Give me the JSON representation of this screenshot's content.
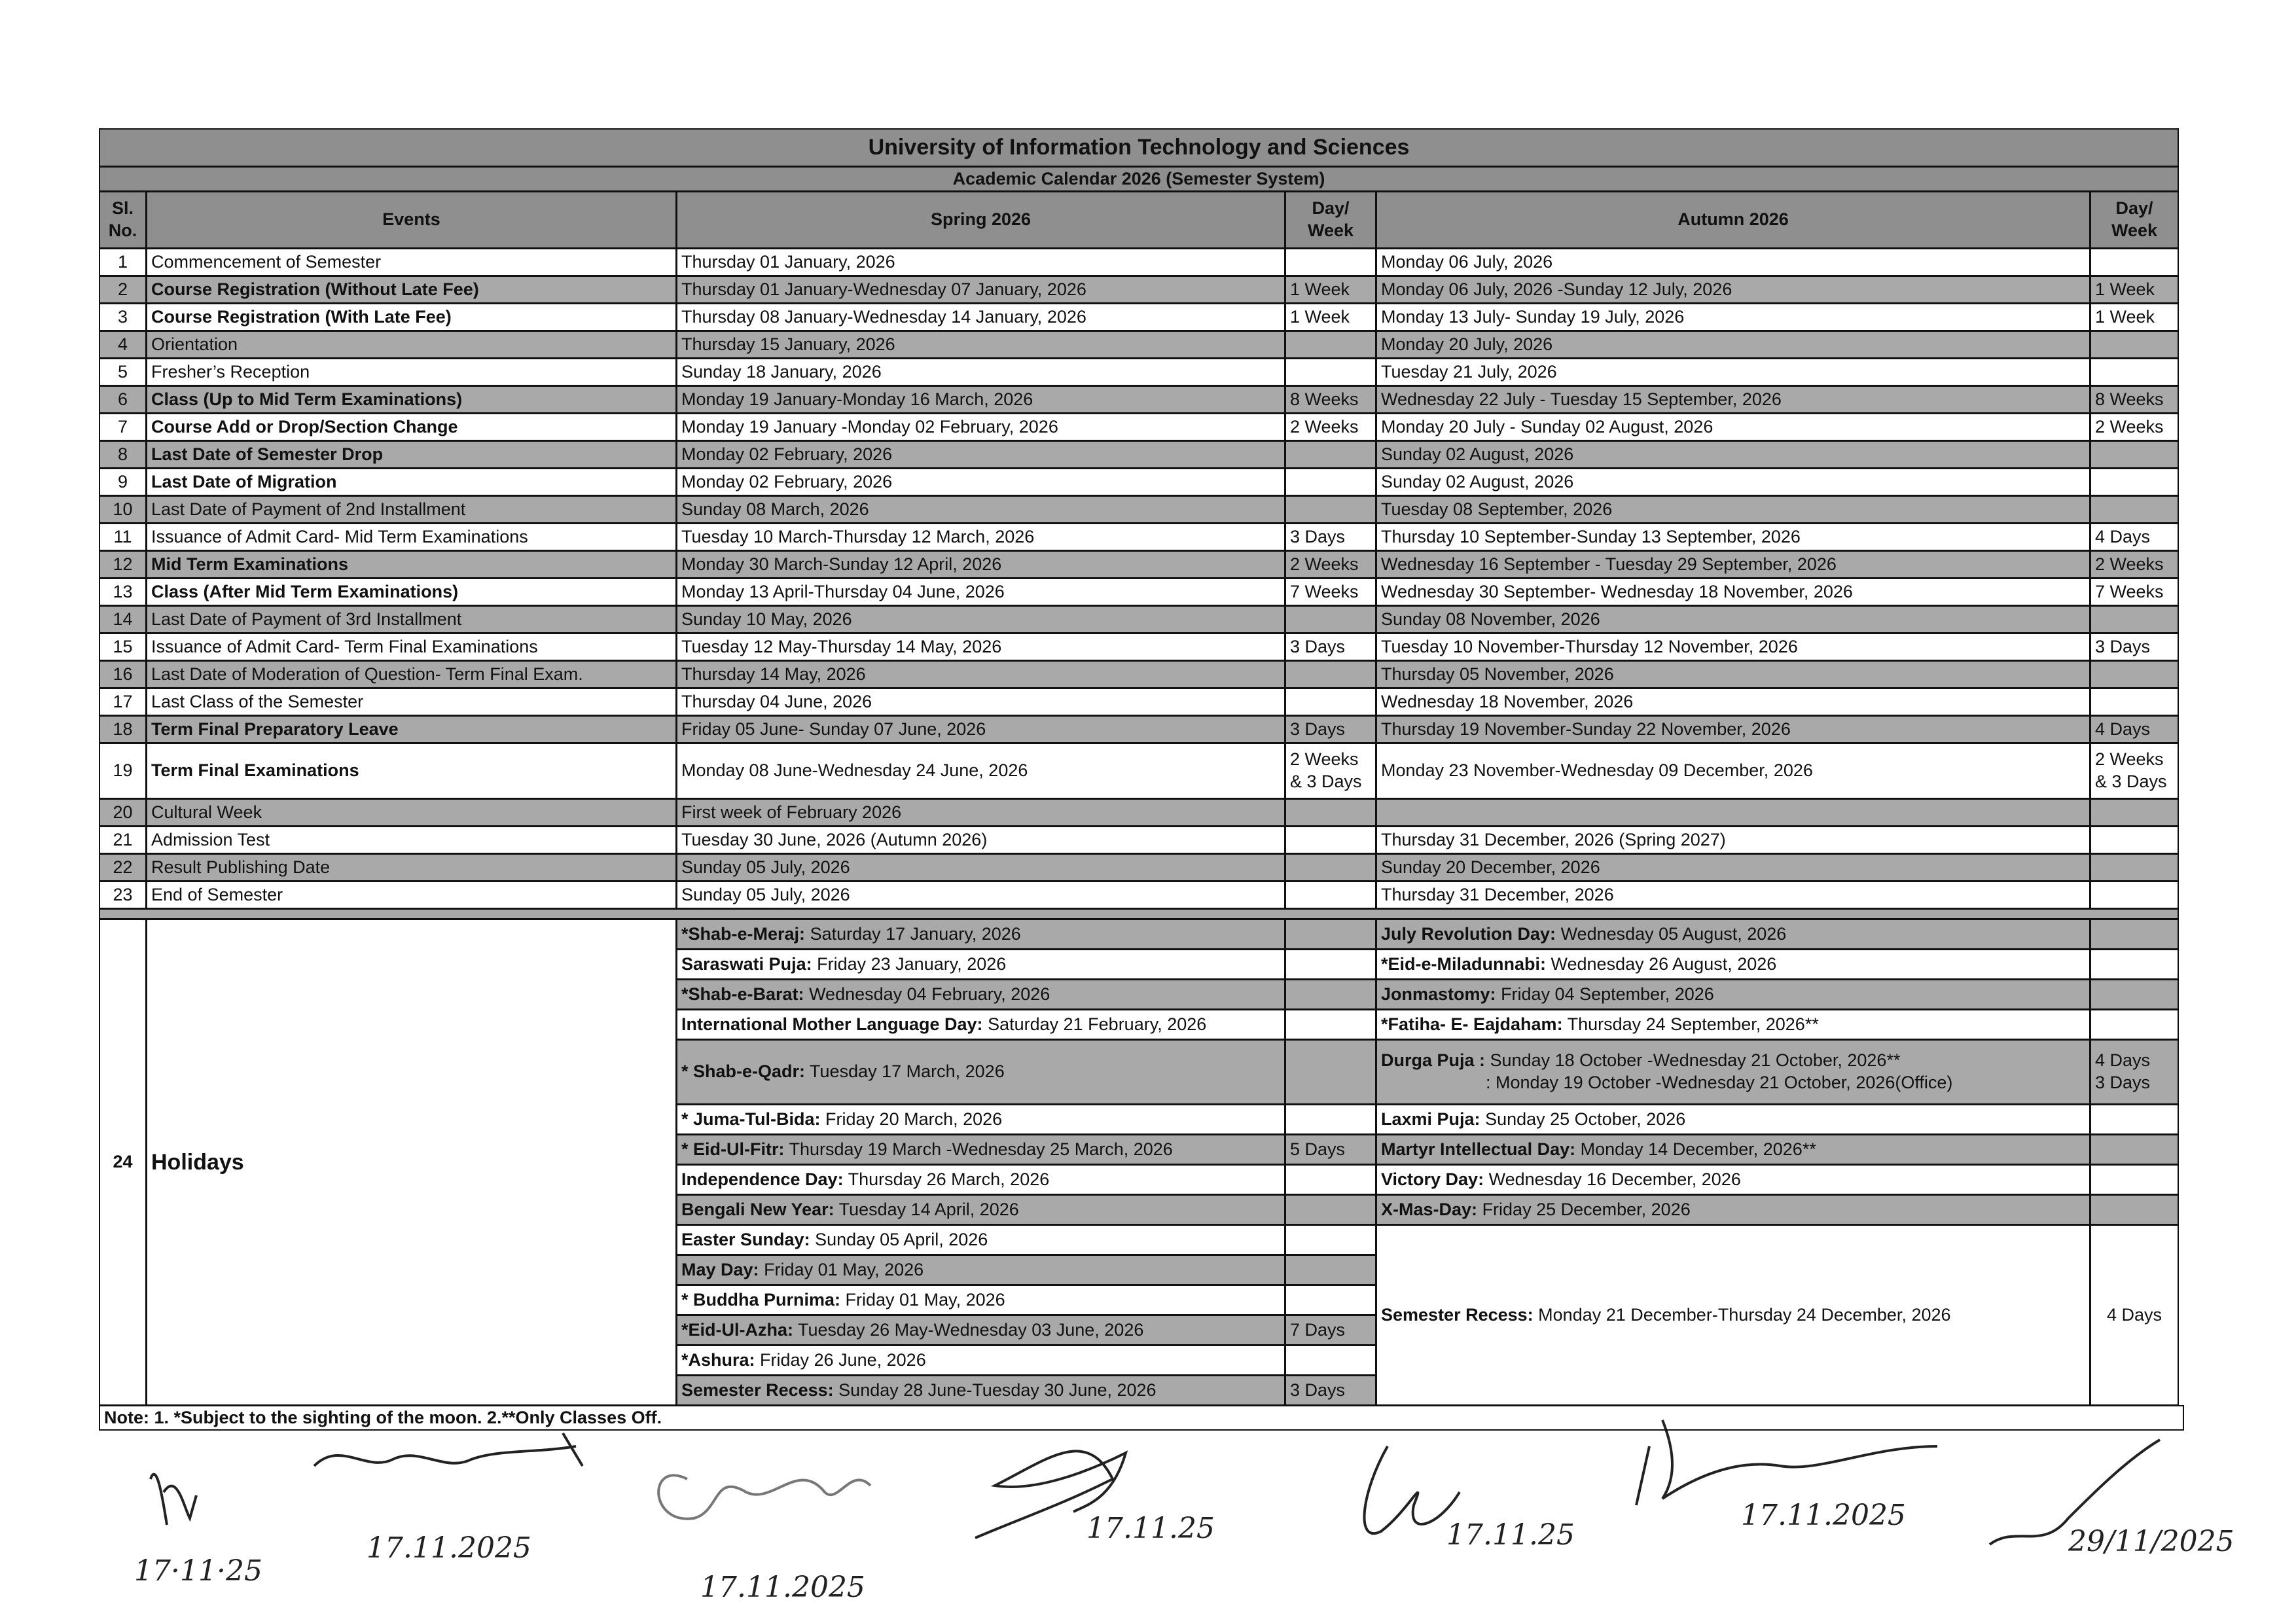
{
  "header": {
    "title": "University of Information Technology and Sciences",
    "subtitle": "Academic Calendar 2026 (Semester System)"
  },
  "columns": [
    "Sl. No.",
    "Events",
    "Spring 2026",
    "Day/ Week",
    "Autumn 2026",
    "Day/ Week"
  ],
  "rows": [
    {
      "sl": "1",
      "event": "Commencement of Semester",
      "bold": false,
      "spring": "Thursday 01 January, 2026",
      "autumn": "Monday 06 July, 2026"
    },
    {
      "sl": "2",
      "event": "Course Registration (Without Late Fee)",
      "bold": true,
      "spring": "Thursday 01 January-Wednesday 07 January, 2026",
      "spring_days": "1 Week",
      "autumn": "Monday 06 July, 2026 -Sunday 12 July, 2026",
      "autumn_days": "1 Week"
    },
    {
      "sl": "3",
      "event": "Course Registration (With Late Fee)",
      "bold": true,
      "spring": "Thursday 08 January-Wednesday 14 January, 2026",
      "spring_days": "1 Week",
      "autumn": "Monday 13 July- Sunday 19 July, 2026",
      "autumn_days": "1 Week"
    },
    {
      "sl": "4",
      "event": "Orientation",
      "bold": false,
      "spring": "Thursday 15 January, 2026",
      "autumn": "Monday 20 July, 2026"
    },
    {
      "sl": "5",
      "event": "Fresher’s Reception",
      "bold": false,
      "spring": "Sunday 18 January, 2026",
      "autumn": "Tuesday 21 July, 2026"
    },
    {
      "sl": "6",
      "event": "Class (Up to Mid Term Examinations)",
      "bold": true,
      "spring": "Monday 19 January-Monday 16 March, 2026",
      "spring_days": "8 Weeks",
      "autumn": "Wednesday 22 July - Tuesday 15 September, 2026",
      "autumn_days": "8 Weeks"
    },
    {
      "sl": "7",
      "event": "Course Add or Drop/Section Change",
      "bold": true,
      "spring": "Monday 19 January -Monday 02 February, 2026",
      "spring_days": "2 Weeks",
      "autumn": "Monday 20 July - Sunday 02 August, 2026",
      "autumn_days": "2 Weeks"
    },
    {
      "sl": "8",
      "event": "Last Date of Semester Drop",
      "bold": true,
      "spring": "Monday 02 February, 2026",
      "autumn": "Sunday 02 August, 2026"
    },
    {
      "sl": "9",
      "event": "Last Date of Migration",
      "bold": true,
      "spring": "Monday 02 February, 2026",
      "autumn": "Sunday 02 August, 2026"
    },
    {
      "sl": "10",
      "event": "Last Date of Payment of 2nd Installment",
      "bold": false,
      "spring": "Sunday 08 March, 2026",
      "autumn": "Tuesday 08 September, 2026"
    },
    {
      "sl": "11",
      "event": "Issuance of Admit Card- Mid Term Examinations",
      "bold": false,
      "spring": "Tuesday 10 March-Thursday 12 March, 2026",
      "spring_days": "3 Days",
      "autumn": "Thursday 10 September-Sunday 13 September, 2026",
      "autumn_days": "4 Days"
    },
    {
      "sl": "12",
      "event": "Mid Term Examinations",
      "bold": true,
      "spring": "Monday 30 March-Sunday 12 April, 2026",
      "spring_days": "2 Weeks",
      "autumn": "Wednesday 16 September - Tuesday 29 September, 2026",
      "autumn_days": "2 Weeks"
    },
    {
      "sl": "13",
      "event": "Class (After Mid Term Examinations)",
      "bold": true,
      "spring": "Monday 13 April-Thursday 04 June, 2026",
      "spring_days": "7 Weeks",
      "autumn": "Wednesday 30 September- Wednesday 18 November, 2026",
      "autumn_days": "7 Weeks"
    },
    {
      "sl": "14",
      "event": "Last Date of Payment of 3rd Installment",
      "bold": false,
      "spring": "Sunday 10 May, 2026",
      "autumn": "Sunday 08 November, 2026"
    },
    {
      "sl": "15",
      "event": "Issuance of Admit Card- Term Final Examinations",
      "bold": false,
      "spring": "Tuesday 12 May-Thursday 14 May, 2026",
      "spring_days": "3 Days",
      "autumn": "Tuesday 10 November-Thursday 12 November, 2026",
      "autumn_days": "3 Days"
    },
    {
      "sl": "16",
      "event": "Last Date of Moderation of Question- Term Final Exam.",
      "bold": false,
      "spring": "Thursday 14 May, 2026",
      "autumn": "Thursday 05 November, 2026"
    },
    {
      "sl": "17",
      "event": "Last Class of the Semester",
      "bold": false,
      "spring": "Thursday 04 June, 2026",
      "autumn": "Wednesday 18 November, 2026"
    },
    {
      "sl": "18",
      "event": "Term Final Preparatory Leave",
      "bold": true,
      "spring": "Friday 05 June- Sunday 07 June, 2026",
      "spring_days": "3 Days",
      "autumn": "Thursday 19 November-Sunday 22 November, 2026",
      "autumn_days": "4 Days"
    },
    {
      "sl": "19",
      "event": "Term Final Examinations",
      "bold": true,
      "spring": "Monday 08 June-Wednesday 24 June, 2026",
      "spring_days": "2 Weeks & 3 Days",
      "autumn": "Monday 23 November-Wednesday 09 December, 2026",
      "autumn_days": "2 Weeks & 3 Days"
    },
    {
      "sl": "20",
      "event": "Cultural Week",
      "bold": false,
      "spring": "First week of February 2026"
    },
    {
      "sl": "21",
      "event": "Admission Test",
      "bold": false,
      "spring": "Tuesday 30 June, 2026 (Autumn 2026)",
      "autumn": "Thursday 31 December, 2026 (Spring 2027)"
    },
    {
      "sl": "22",
      "event": "Result Publishing Date",
      "bold": false,
      "spring": "Sunday 05 July, 2026",
      "autumn": "Sunday 20 December, 2026"
    },
    {
      "sl": "23",
      "event": "End of Semester",
      "bold": false,
      "spring": "Sunday 05 July, 2026",
      "autumn": "Thursday 31 December, 2026"
    }
  ],
  "holidays": {
    "sl": "24",
    "event": "Holidays",
    "spring": [
      {
        "name": "*Shab-e-Meraj:",
        "date": "Saturday 17 January, 2026"
      },
      {
        "name": "Saraswati Puja:",
        "date": "Friday 23 January, 2026"
      },
      {
        "name": "*Shab-e-Barat:",
        "date": "Wednesday 04 February, 2026"
      },
      {
        "name": "International Mother Language Day:",
        "date": "Saturday 21 February, 2026"
      },
      {
        "name": "* Shab-e-Qadr:",
        "date": "Tuesday 17 March, 2026"
      },
      {
        "name": "* Juma-Tul-Bida:",
        "date": "Friday 20 March, 2026"
      },
      {
        "name": "* Eid-Ul-Fitr:",
        "date": "Thursday 19 March -Wednesday 25 March, 2026",
        "days": "5 Days"
      },
      {
        "name": "Independence Day:",
        "date": "Thursday 26 March, 2026"
      },
      {
        "name": "Bengali New Year:",
        "date": "Tuesday 14 April, 2026"
      },
      {
        "name": "Easter Sunday:",
        "date": "Sunday 05 April, 2026"
      },
      {
        "name": "May Day:",
        "date": "Friday 01 May, 2026"
      },
      {
        "name": "* Buddha Purnima:",
        "date": "Friday 01 May, 2026"
      },
      {
        "name": "*Eid-Ul-Azha:",
        "date": "Tuesday 26 May-Wednesday 03 June, 2026",
        "days": "7 Days"
      },
      {
        "name": "*Ashura:",
        "date": "Friday 26 June, 2026"
      },
      {
        "name": "Semester Recess:",
        "date": "Sunday 28 June-Tuesday 30 June, 2026",
        "days": "3 Days"
      }
    ],
    "autumn": [
      {
        "name": "July Revolution Day:",
        "date": "Wednesday 05 August, 2026"
      },
      {
        "name": "*Eid-e-Miladunnabi:",
        "date": "Wednesday 26 August, 2026"
      },
      {
        "name": "Jonmastomy:",
        "date": "Friday 04 September, 2026"
      },
      {
        "name": "*Fatiha- E- Eajdaham:",
        "date": "Thursday 24 September, 2026**"
      },
      {
        "name": "Durga Puja :",
        "date": "Sunday 18 October -Wednesday 21 October, 2026**",
        "days": "4 Days",
        "date2": ": Monday 19 October -Wednesday 21 October, 2026(Office)",
        "days2": "3 Days"
      },
      {
        "name": "Laxmi Puja:",
        "date": "Sunday 25 October, 2026"
      },
      {
        "name": "Martyr Intellectual Day:",
        "date": "Monday 14 December, 2026**"
      },
      {
        "name": "Victory Day:",
        "date": "Wednesday 16 December, 2026"
      },
      {
        "name": "X-Mas-Day:",
        "date": "Friday 25 December, 2026"
      },
      {
        "name": "Semester Recess:",
        "date": "Monday 21 December-Thursday 24 December, 2026",
        "days": "4 Days"
      }
    ]
  },
  "note": "Note: 1. *Subject to the sighting of the moon. 2.**Only Classes Off.",
  "signatures": [
    "17·11·25",
    "17.11.2025",
    "17.11.2025",
    "17.11.25",
    "17.11.25",
    "17.11.2025",
    "29/11/2025"
  ]
}
